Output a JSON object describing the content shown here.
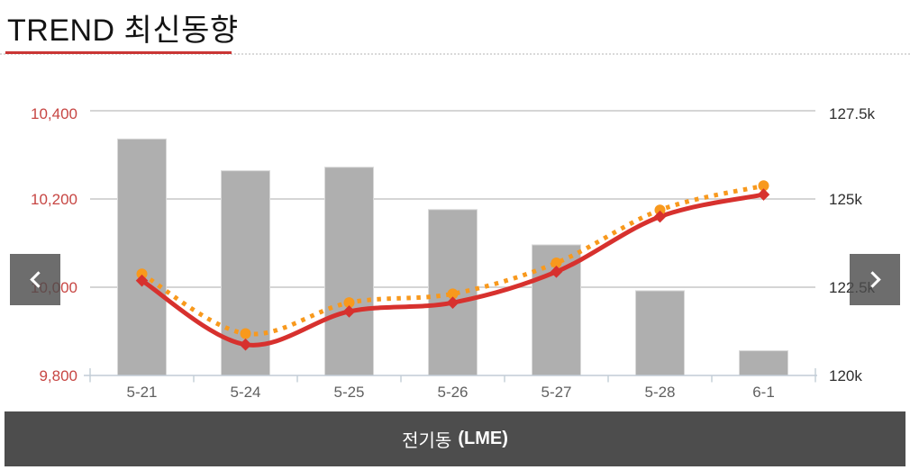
{
  "header": {
    "title": "TREND 최신동향"
  },
  "nav": {
    "prev_icon": "chevron-left",
    "next_icon": "chevron-right"
  },
  "footer": {
    "market": "전기동",
    "exchange": "(LME)"
  },
  "colors": {
    "accent_red": "#ca3635",
    "bar_fill": "#afafaf",
    "bar_border": "#d9d9d9",
    "line_solid": "#d7312e",
    "line_dotted": "#f8991d",
    "gridline": "#c7c7c7",
    "axis_line": "#c2ccd6",
    "left_axis_text": "#c74643",
    "right_axis_text": "#2e2e2e",
    "caption_bg": "#4d4d4d"
  },
  "chart_data": {
    "type": "bar",
    "subtype": "bar+line combo",
    "title": "전기동 (LME)",
    "categories": [
      "5-21",
      "5-24",
      "5-25",
      "5-26",
      "5-27",
      "5-28",
      "6-1"
    ],
    "series": [
      {
        "name": "inventory-bars",
        "type": "bar",
        "axis": "right",
        "color": "#afafaf",
        "values": [
          126700,
          125800,
          125900,
          124700,
          123700,
          122400,
          120700
        ]
      },
      {
        "name": "price-line-solid",
        "type": "line",
        "axis": "left",
        "color": "#d7312e",
        "marker": "diamond",
        "values": [
          10015,
          9870,
          9945,
          9965,
          10035,
          10160,
          10210
        ]
      },
      {
        "name": "price-line-dotted",
        "type": "line",
        "axis": "left",
        "color": "#f8991d",
        "marker": "circle",
        "style": "dotted",
        "values": [
          10030,
          9895,
          9965,
          9985,
          10055,
          10175,
          10230
        ]
      }
    ],
    "left_axis": {
      "min": 9800,
      "max": 10400,
      "ticks": [
        "9,800",
        "10,000",
        "10,200",
        "10,400"
      ],
      "tick_values": [
        9800,
        10000,
        10200,
        10400
      ]
    },
    "right_axis": {
      "min": 120000,
      "max": 127500,
      "ticks": [
        "120k",
        "122.5k",
        "125k",
        "127.5k"
      ],
      "tick_values": [
        120000,
        122500,
        125000,
        127500
      ]
    },
    "grid": "horizontal",
    "legend": "none"
  }
}
